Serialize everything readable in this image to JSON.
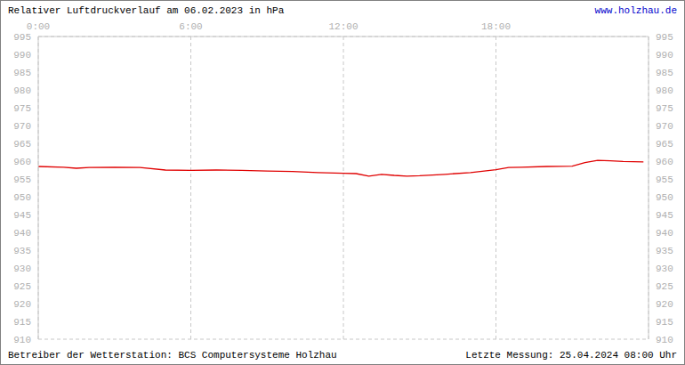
{
  "chart_data": {
    "type": "line",
    "title": "Relativer Luftdruckverlauf am 06.02.2023 in hPa",
    "subtitle": "www.holzhau.de",
    "annotations": [
      "Betreiber der Wetterstation: BCS Computersysteme Holzhau",
      "Letzte Messung: 25.04.2024 08:00 Uhr"
    ],
    "x": [
      0,
      1,
      1.5,
      2,
      3,
      4,
      5,
      6,
      7,
      8,
      9,
      10,
      11,
      12,
      12.5,
      13,
      13.5,
      14,
      14.5,
      15,
      16,
      17,
      18,
      18.5,
      19,
      20,
      21,
      21.5,
      22,
      22.5,
      23,
      23.8
    ],
    "values": [
      958.5,
      958.3,
      958.0,
      958.2,
      958.3,
      958.2,
      957.5,
      957.4,
      957.5,
      957.4,
      957.2,
      957.1,
      956.8,
      956.6,
      956.5,
      955.8,
      956.3,
      956.0,
      955.8,
      955.9,
      956.3,
      956.8,
      957.6,
      958.2,
      958.3,
      958.5,
      958.6,
      959.6,
      960.2,
      960.1,
      959.9,
      959.8
    ],
    "color": "#e00000",
    "xlim": [
      0,
      24
    ],
    "xticks": [
      {
        "value": 0,
        "label": "0:00"
      },
      {
        "value": 6,
        "label": "6:00"
      },
      {
        "value": 12,
        "label": "12:00"
      },
      {
        "value": 18,
        "label": "18:00"
      }
    ],
    "ylim": [
      910,
      995
    ],
    "yticks": [
      910,
      915,
      920,
      925,
      930,
      935,
      940,
      945,
      950,
      955,
      960,
      965,
      970,
      975,
      980,
      985,
      990,
      995
    ],
    "grid": true
  }
}
